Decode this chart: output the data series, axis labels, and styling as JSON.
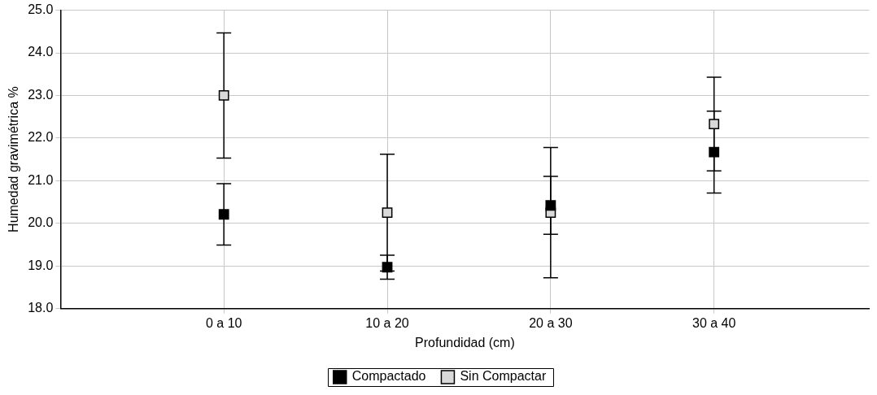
{
  "chart_data": {
    "type": "scatter",
    "xlabel": "Profundidad (cm)",
    "ylabel": "Humedad gravimétrica %",
    "categories": [
      "0 a 10",
      "10 a 20",
      "20 a 30",
      "30 a 40"
    ],
    "series": [
      {
        "name": "Compactado",
        "color": "#000000",
        "values": [
          20.21,
          18.97,
          20.42,
          21.67
        ],
        "errors": [
          0.72,
          0.28,
          0.68,
          0.96
        ]
      },
      {
        "name": "Sin Compactar",
        "color": "#d9d9d9",
        "values": [
          23.0,
          20.25,
          20.25,
          22.33
        ],
        "errors": [
          1.47,
          1.37,
          1.53,
          1.1
        ]
      }
    ],
    "ylim": [
      18,
      25
    ],
    "yticks": [
      {
        "value": 18,
        "label": "18.0"
      },
      {
        "value": 19,
        "label": "19.0"
      },
      {
        "value": 20,
        "label": "20.0"
      },
      {
        "value": 21,
        "label": "21.0"
      },
      {
        "value": 22,
        "label": "22.0"
      },
      {
        "value": 23,
        "label": "23.0"
      },
      {
        "value": 24,
        "label": "24.0"
      },
      {
        "value": 25,
        "label": "25.0"
      }
    ],
    "grid": true,
    "legend": "bottom",
    "marker": "square"
  }
}
